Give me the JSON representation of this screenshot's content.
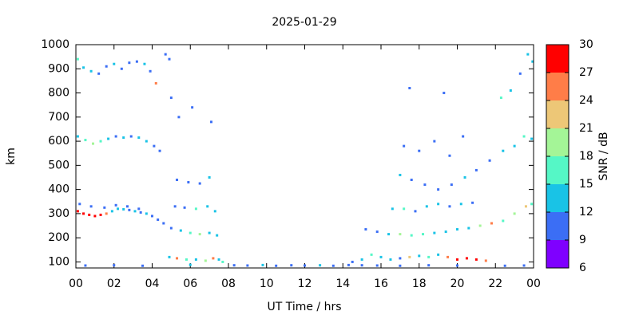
{
  "chart_data": {
    "type": "scatter",
    "title": "2025-01-29",
    "x_label": "UT Time / hrs",
    "y_label": "km",
    "colorbar_label": "SNR / dB",
    "xlim": [
      0,
      24
    ],
    "xticks": [
      {
        "value": 0,
        "label": "00"
      },
      {
        "value": 2,
        "label": "02"
      },
      {
        "value": 4,
        "label": "04"
      },
      {
        "value": 6,
        "label": "06"
      },
      {
        "value": 8,
        "label": "08"
      },
      10,
      12,
      14,
      16,
      18,
      20,
      22,
      {
        "value": 24,
        "label": "00"
      }
    ],
    "ylim": [
      75,
      1000
    ],
    "yticks": [
      100,
      200,
      300,
      400,
      500,
      600,
      700,
      800,
      900,
      1000
    ],
    "clim": [
      6,
      30
    ],
    "cticks": [
      6,
      9,
      12,
      15,
      18,
      21,
      24,
      27,
      30
    ],
    "colors": [
      "#7f00ff",
      "#3b6ef5",
      "#19c3e6",
      "#55f7c6",
      "#a4f597",
      "#edc777",
      "#ff7d48",
      "#ff0000"
    ],
    "x": [
      0.1,
      0.4,
      0.7,
      1.0,
      1.3,
      1.6,
      1.9,
      2.2,
      2.5,
      2.8,
      3.1,
      3.4,
      3.7,
      4.0,
      4.3,
      4.6,
      0.2,
      0.8,
      1.5,
      2.1,
      2.7,
      3.3,
      0.1,
      0.5,
      0.9,
      1.3,
      1.7,
      2.1,
      2.5,
      2.9,
      3.3,
      3.7,
      4.1,
      4.4,
      0.1,
      0.4,
      0.8,
      1.2,
      1.6,
      2.0,
      2.4,
      2.8,
      3.2,
      3.6,
      3.9,
      4.2,
      4.7,
      4.9,
      4.9,
      5.3,
      5.8,
      6.3,
      6.8,
      7.2,
      7.5,
      7.7,
      5.0,
      5.5,
      6.0,
      6.5,
      7.0,
      7.4,
      5.2,
      5.7,
      6.3,
      6.9,
      7.3,
      5.3,
      5.9,
      6.5,
      7.0,
      5.0,
      5.4,
      6.1,
      7.1,
      0.5,
      2.0,
      3.5,
      6.0,
      8.3,
      9.0,
      9.8,
      10.5,
      11.3,
      12.0,
      12.8,
      13.5,
      14.3,
      15.0,
      15.8,
      17.0,
      18.5,
      20.0,
      22.5,
      23.5,
      14.5,
      15.0,
      15.5,
      16.0,
      16.5,
      17.0,
      17.5,
      18.0,
      18.5,
      19.0,
      19.5,
      20.0,
      20.5,
      21.0,
      21.5,
      15.2,
      15.8,
      16.4,
      17.0,
      17.6,
      18.2,
      18.8,
      19.4,
      20.0,
      20.6,
      21.2,
      21.8,
      22.4,
      23.0,
      23.6,
      23.9,
      16.6,
      17.2,
      17.8,
      18.4,
      19.0,
      19.6,
      20.2,
      20.8,
      17.0,
      17.6,
      18.3,
      19.0,
      19.7,
      20.4,
      21.0,
      21.7,
      22.4,
      23.0,
      23.5,
      23.9,
      17.2,
      18.0,
      18.8,
      19.6,
      20.3,
      17.5,
      19.3,
      22.3,
      22.8,
      23.3,
      23.7,
      23.95
    ],
    "y": [
      310,
      300,
      295,
      290,
      295,
      300,
      310,
      320,
      318,
      315,
      310,
      305,
      300,
      290,
      275,
      260,
      340,
      330,
      325,
      335,
      330,
      320,
      620,
      605,
      590,
      600,
      610,
      620,
      615,
      620,
      615,
      600,
      580,
      560,
      940,
      905,
      890,
      880,
      910,
      920,
      900,
      925,
      930,
      920,
      890,
      840,
      960,
      940,
      120,
      115,
      110,
      110,
      105,
      115,
      110,
      100,
      240,
      230,
      220,
      215,
      220,
      210,
      330,
      325,
      320,
      330,
      310,
      440,
      430,
      425,
      450,
      780,
      700,
      740,
      680,
      85,
      86,
      84,
      88,
      86,
      85,
      87,
      84,
      86,
      85,
      86,
      84,
      87,
      86,
      85,
      84,
      86,
      85,
      84,
      85,
      100,
      110,
      130,
      120,
      110,
      115,
      120,
      125,
      120,
      130,
      120,
      110,
      115,
      110,
      105,
      235,
      225,
      215,
      215,
      210,
      215,
      220,
      225,
      235,
      240,
      250,
      260,
      270,
      300,
      330,
      340,
      320,
      320,
      310,
      330,
      340,
      330,
      340,
      345,
      460,
      440,
      420,
      400,
      420,
      450,
      480,
      520,
      560,
      580,
      620,
      610,
      580,
      560,
      600,
      540,
      620,
      820,
      800,
      780,
      810,
      880,
      960,
      930
    ],
    "snr": [
      28,
      29,
      28,
      27,
      27,
      25,
      14,
      12,
      13,
      11,
      12,
      11,
      12,
      10,
      11,
      10,
      10,
      11,
      10,
      10,
      11,
      10,
      13,
      16,
      19,
      15,
      13,
      11,
      12,
      11,
      13,
      12,
      11,
      10,
      15,
      14,
      12,
      11,
      10,
      12,
      11,
      10,
      11,
      12,
      10,
      26,
      10,
      10,
      13,
      24,
      16,
      14,
      20,
      25,
      13,
      16,
      10,
      12,
      17,
      19,
      14,
      12,
      10,
      11,
      16,
      12,
      13,
      10,
      10,
      11,
      14,
      10,
      10,
      10,
      10,
      10,
      10,
      10,
      12,
      11,
      10,
      12,
      10,
      11,
      10,
      12,
      10,
      11,
      10,
      10,
      10,
      11,
      10,
      10,
      10,
      10,
      13,
      17,
      12,
      14,
      11,
      22,
      13,
      16,
      14,
      24,
      28,
      27,
      29,
      26,
      10,
      11,
      12,
      18,
      15,
      16,
      14,
      13,
      12,
      14,
      20,
      24,
      16,
      19,
      22,
      17,
      14,
      16,
      11,
      12,
      13,
      11,
      12,
      10,
      12,
      10,
      11,
      10,
      11,
      12,
      10,
      11,
      12,
      14,
      16,
      13,
      10,
      11,
      10,
      10,
      10,
      10,
      10,
      15,
      12,
      11,
      13,
      12
    ]
  }
}
